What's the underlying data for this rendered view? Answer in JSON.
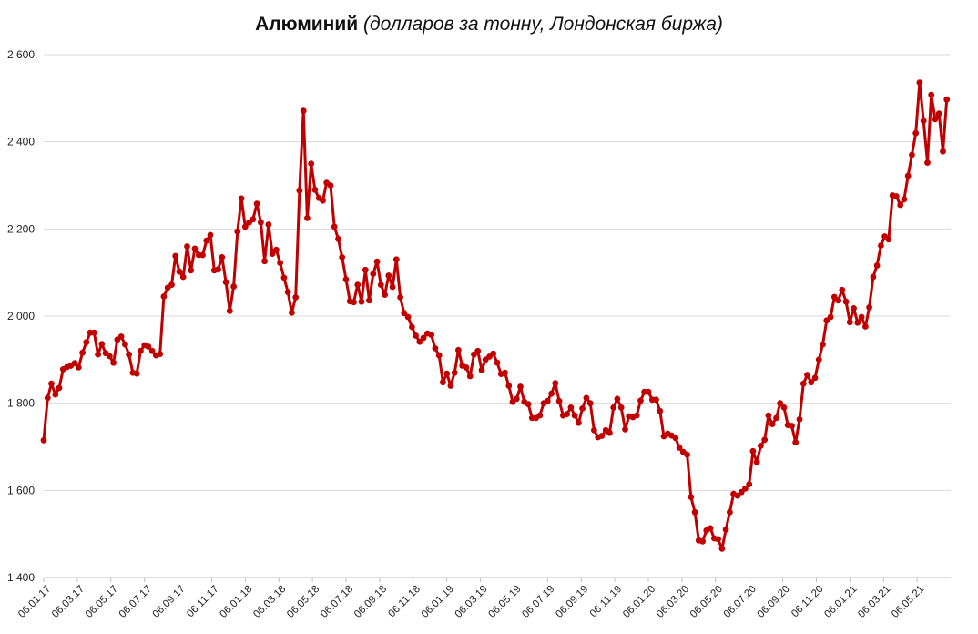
{
  "chart_data": {
    "type": "line",
    "title": "Алюминий",
    "subtitle": "(долларов за тонну, Лондонская биржа)",
    "xlabel": "",
    "ylabel": "",
    "ylim": [
      1400,
      2600
    ],
    "yticks": [
      1400,
      1600,
      1800,
      2000,
      2200,
      2400,
      2600
    ],
    "ytick_labels": [
      "1 400",
      "1 600",
      "1 800",
      "2 000",
      "2 200",
      "2 400",
      "2 600"
    ],
    "xticks": [
      "06.01.17",
      "06.03.17",
      "06.05.17",
      "06.07.17",
      "06.09.17",
      "06.11.17",
      "06.01.18",
      "06.03.18",
      "06.05.18",
      "06.07.18",
      "06.09.18",
      "06.11.18",
      "06.01.19",
      "06.03.19",
      "06.05.19",
      "06.07.19",
      "06.09.19",
      "06.11.19",
      "06.01.20",
      "06.03.20",
      "06.05.20",
      "06.07.20",
      "06.09.20",
      "06.11.20",
      "06.01.21",
      "06.03.21",
      "06.05.21"
    ],
    "grid": "horizontal",
    "legend": "none",
    "color": "#C00000",
    "series": [
      {
        "values": [
          1715,
          1812,
          1845,
          1820,
          1835,
          1878,
          1883,
          1886,
          1892,
          1882,
          1916,
          1940,
          1962,
          1962,
          1912,
          1936,
          1915,
          1908,
          1893,
          1946,
          1953,
          1935,
          1912,
          1870,
          1868,
          1920,
          1933,
          1930,
          1920,
          1910,
          1913,
          2045,
          2065,
          2072,
          2138,
          2102,
          2090,
          2160,
          2105,
          2155,
          2140,
          2140,
          2173,
          2186,
          2105,
          2107,
          2135,
          2078,
          2012,
          2068,
          2194,
          2270,
          2205,
          2215,
          2222,
          2258,
          2215,
          2126,
          2210,
          2143,
          2152,
          2122,
          2088,
          2055,
          2008,
          2043,
          2288,
          2471,
          2225,
          2350,
          2290,
          2271,
          2265,
          2306,
          2300,
          2205,
          2177,
          2135,
          2084,
          2034,
          2032,
          2072,
          2033,
          2106,
          2036,
          2097,
          2125,
          2072,
          2049,
          2093,
          2067,
          2130,
          2043,
          2007,
          1998,
          1975,
          1955,
          1941,
          1950,
          1960,
          1957,
          1926,
          1910,
          1848,
          1868,
          1840,
          1870,
          1922,
          1886,
          1882,
          1862,
          1912,
          1920,
          1876,
          1900,
          1907,
          1914,
          1893,
          1867,
          1870,
          1840,
          1803,
          1810,
          1838,
          1803,
          1798,
          1766,
          1766,
          1772,
          1800,
          1805,
          1822,
          1846,
          1805,
          1772,
          1775,
          1790,
          1772,
          1755,
          1788,
          1812,
          1800,
          1738,
          1722,
          1725,
          1738,
          1732,
          1790,
          1810,
          1790,
          1740,
          1770,
          1768,
          1772,
          1806,
          1826,
          1826,
          1808,
          1808,
          1782,
          1724,
          1730,
          1726,
          1720,
          1698,
          1688,
          1682,
          1585,
          1550,
          1485,
          1483,
          1508,
          1513,
          1490,
          1488,
          1466,
          1510,
          1550,
          1592,
          1588,
          1596,
          1604,
          1614,
          1690,
          1665,
          1702,
          1716,
          1772,
          1752,
          1766,
          1800,
          1790,
          1750,
          1748,
          1710,
          1763,
          1845,
          1865,
          1848,
          1858,
          1900,
          1935,
          1990,
          1998,
          2044,
          2036,
          2060,
          2033,
          1986,
          2018,
          1985,
          1998,
          1976,
          2020,
          2090,
          2116,
          2162,
          2183,
          2176,
          2277,
          2275,
          2255,
          2268,
          2322,
          2370,
          2420,
          2536,
          2448,
          2352,
          2508,
          2452,
          2465,
          2378,
          2497
        ]
      }
    ]
  }
}
